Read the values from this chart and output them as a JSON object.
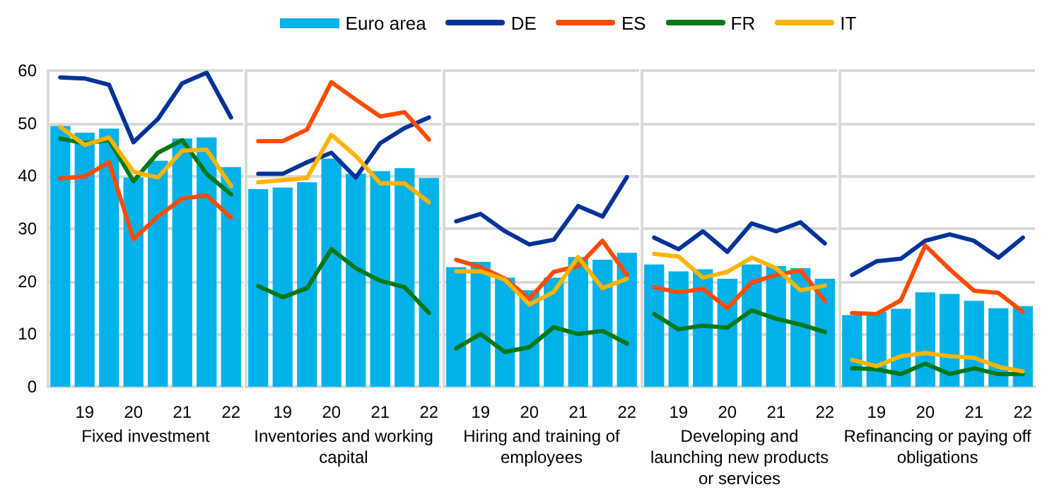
{
  "chart_data": [
    {
      "type": "bar",
      "xlabel": "Fixed investment",
      "categories": [
        null,
        "19",
        null,
        "20",
        null,
        "21",
        null,
        "22"
      ],
      "ylim": [
        0,
        60
      ],
      "yticks": [
        0,
        10,
        20,
        30,
        40,
        50,
        60
      ],
      "grid": "y",
      "legend": "top",
      "marker": "none",
      "series": [
        {
          "name": "Euro area",
          "color": "#00b1ea",
          "values": [
            49.5,
            48.2,
            49,
            39.7,
            42.9,
            47.1,
            47.3,
            41.7
          ]
        },
        {
          "name": "DE",
          "type": "line",
          "color": "#003299",
          "values": [
            58.7,
            58.5,
            57.3,
            46.4,
            50.8,
            57.6,
            59.6,
            51.1
          ]
        },
        {
          "name": "ES",
          "type": "line",
          "color": "#ff4b00",
          "values": [
            39.5,
            39.9,
            42.6,
            28,
            32.3,
            35.7,
            36.3,
            32.1
          ]
        },
        {
          "name": "FR",
          "type": "line",
          "color": "#007816",
          "values": [
            47.1,
            46.2,
            46.8,
            39,
            44.4,
            46.8,
            40.4,
            36.5
          ]
        },
        {
          "name": "IT",
          "type": "line",
          "color": "#ffb400",
          "values": [
            49.3,
            45.9,
            47.3,
            40.8,
            39.7,
            44.8,
            45,
            38.1
          ]
        }
      ]
    },
    {
      "type": "bar",
      "xlabel": "Inventories and working capital",
      "categories": [
        null,
        "19",
        null,
        "20",
        null,
        "21",
        null,
        "22"
      ],
      "ylim": [
        0,
        60
      ],
      "yticks": [
        0,
        10,
        20,
        30,
        40,
        50,
        60
      ],
      "grid": "y",
      "tick_labels": "x",
      "marker": "none",
      "series": [
        {
          "name": "Euro area",
          "color": "#00b1ea",
          "values": [
            37.5,
            37.8,
            38.8,
            43.3,
            40.4,
            40.9,
            41.5,
            39.6
          ]
        },
        {
          "name": "DE",
          "type": "line",
          "color": "#003299",
          "values": [
            40.4,
            40.4,
            42.6,
            44.4,
            39.7,
            46.2,
            49.1,
            51.1
          ]
        },
        {
          "name": "ES",
          "type": "line",
          "color": "#ff4b00",
          "values": [
            46.6,
            46.6,
            48.8,
            57.8,
            54.5,
            51.3,
            52.1,
            46.9
          ]
        },
        {
          "name": "FR",
          "type": "line",
          "color": "#007816",
          "values": [
            19.1,
            17,
            18.7,
            26.1,
            22.5,
            20.1,
            18.9,
            14
          ]
        },
        {
          "name": "IT",
          "type": "line",
          "color": "#ffb400",
          "values": [
            38.8,
            39.2,
            39.6,
            47.8,
            43.8,
            38.6,
            38.6,
            35
          ]
        }
      ]
    },
    {
      "type": "bar",
      "xlabel": "Hiring and training of employees",
      "categories": [
        null,
        "19",
        null,
        "20",
        null,
        "21",
        null,
        "22"
      ],
      "ylim": [
        0,
        60
      ],
      "yticks": [
        0,
        10,
        20,
        30,
        40,
        50,
        60
      ],
      "grid": "y",
      "tick_labels": "x",
      "marker": "none",
      "series": [
        {
          "name": "Euro area",
          "color": "#00b1ea",
          "values": [
            22.7,
            23.7,
            20.7,
            18.3,
            20.7,
            24.6,
            24.1,
            25.4
          ]
        },
        {
          "name": "DE",
          "type": "line",
          "color": "#003299",
          "values": [
            31.4,
            32.8,
            29.5,
            27,
            27.9,
            34.3,
            32.3,
            39.8
          ]
        },
        {
          "name": "ES",
          "type": "line",
          "color": "#ff4b00",
          "values": [
            24.1,
            22.7,
            20.5,
            16.7,
            21.8,
            22.9,
            27.7,
            21.2
          ]
        },
        {
          "name": "FR",
          "type": "line",
          "color": "#007816",
          "values": [
            7.3,
            10,
            6.6,
            7.5,
            11.3,
            10,
            10.6,
            8.2
          ]
        },
        {
          "name": "IT",
          "type": "line",
          "color": "#ffb400",
          "values": [
            21.9,
            21.9,
            20.3,
            15.6,
            18,
            24.6,
            18.7,
            20.5
          ]
        }
      ]
    },
    {
      "type": "bar",
      "xlabel": "Developing and launching new products or services",
      "categories": [
        null,
        "19",
        null,
        "20",
        null,
        "21",
        null,
        "22"
      ],
      "ylim": [
        0,
        60
      ],
      "yticks": [
        0,
        10,
        20,
        30,
        40,
        50,
        60
      ],
      "grid": "y",
      "tick_labels": "x",
      "marker": "none",
      "series": [
        {
          "name": "Euro area",
          "color": "#00b1ea",
          "values": [
            23.2,
            21.9,
            22.3,
            20.5,
            23.2,
            22.9,
            22.5,
            20.5
          ]
        },
        {
          "name": "DE",
          "type": "line",
          "color": "#003299",
          "values": [
            28.3,
            26.1,
            29.5,
            25.6,
            31,
            29.5,
            31.2,
            27.2
          ]
        },
        {
          "name": "ES",
          "type": "line",
          "color": "#ff4b00",
          "values": [
            18.9,
            17.9,
            18.6,
            14.9,
            19.8,
            21.2,
            22.1,
            16.3
          ]
        },
        {
          "name": "FR",
          "type": "line",
          "color": "#007816",
          "values": [
            13.8,
            10.9,
            11.6,
            11.2,
            14.5,
            12.9,
            11.8,
            10.4
          ]
        },
        {
          "name": "IT",
          "type": "line",
          "color": "#ffb400",
          "values": [
            25.2,
            24.7,
            20.7,
            21.8,
            24.5,
            22.5,
            18.3,
            19.2
          ]
        }
      ]
    },
    {
      "type": "bar",
      "xlabel": "Refinancing or paying off obligations",
      "categories": [
        null,
        "19",
        null,
        "20",
        null,
        "21",
        null,
        "22"
      ],
      "ylim": [
        0,
        60
      ],
      "yticks": [
        0,
        10,
        20,
        30,
        40,
        50,
        60
      ],
      "grid": "y",
      "tick_labels": "x",
      "marker": "none",
      "series": [
        {
          "name": "Euro area",
          "color": "#00b1ea",
          "values": [
            13.6,
            14.2,
            14.8,
            17.9,
            17.6,
            16.3,
            14.9,
            15.3
          ]
        },
        {
          "name": "DE",
          "type": "line",
          "color": "#003299",
          "values": [
            21.2,
            23.8,
            24.3,
            27.7,
            28.9,
            27.7,
            24.5,
            28.3
          ]
        },
        {
          "name": "ES",
          "type": "line",
          "color": "#ff4b00",
          "values": [
            14,
            13.8,
            16.4,
            26.8,
            22.3,
            18.2,
            17.8,
            14.2
          ]
        },
        {
          "name": "FR",
          "type": "line",
          "color": "#007816",
          "values": [
            3.5,
            3.3,
            2.4,
            4.4,
            2.4,
            3.5,
            2.4,
            2.4
          ]
        },
        {
          "name": "IT",
          "type": "line",
          "color": "#ffb400",
          "values": [
            5.1,
            3.9,
            5.8,
            6.4,
            5.8,
            5.5,
            3.8,
            2.9
          ]
        }
      ]
    }
  ]
}
